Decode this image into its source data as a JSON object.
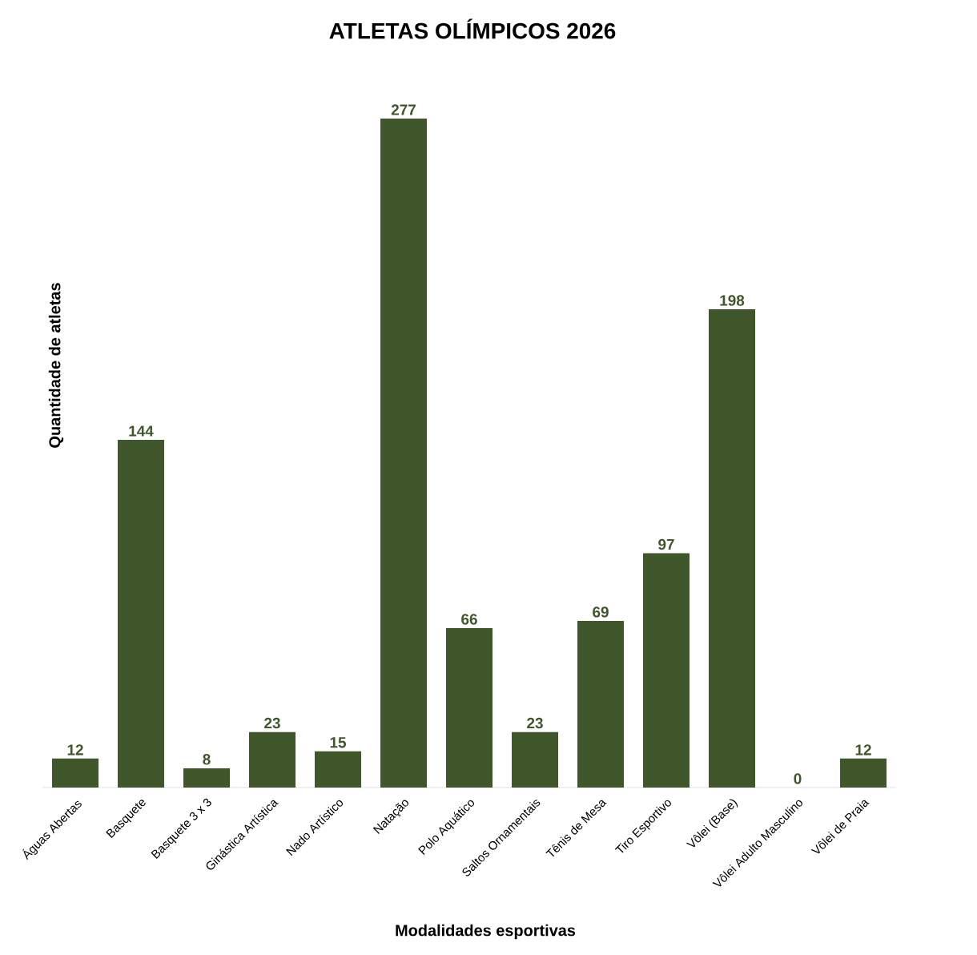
{
  "chart_data": {
    "type": "bar",
    "title": "ATLETAS OLÍMPICOS 2026",
    "xlabel": "Modalidades esportivas",
    "ylabel": "Quantidade de atletas",
    "categories": [
      "Águas Abertas",
      "Basquete",
      "Basquete 3 x 3",
      "Ginástica Artística",
      "Nado Artístico",
      "Natação",
      "Polo Aquático",
      "Saltos Ornamentais",
      "Tênis de Mesa",
      "Tiro Esportivo",
      "Vôlei (Base)",
      "Vôlei Adulto Masculino",
      "Vôlei de Praia"
    ],
    "values": [
      12,
      144,
      8,
      23,
      15,
      277,
      66,
      23,
      69,
      97,
      198,
      0,
      12
    ],
    "color": "#3f572a",
    "data_labels": true,
    "tick_labels": "x"
  }
}
